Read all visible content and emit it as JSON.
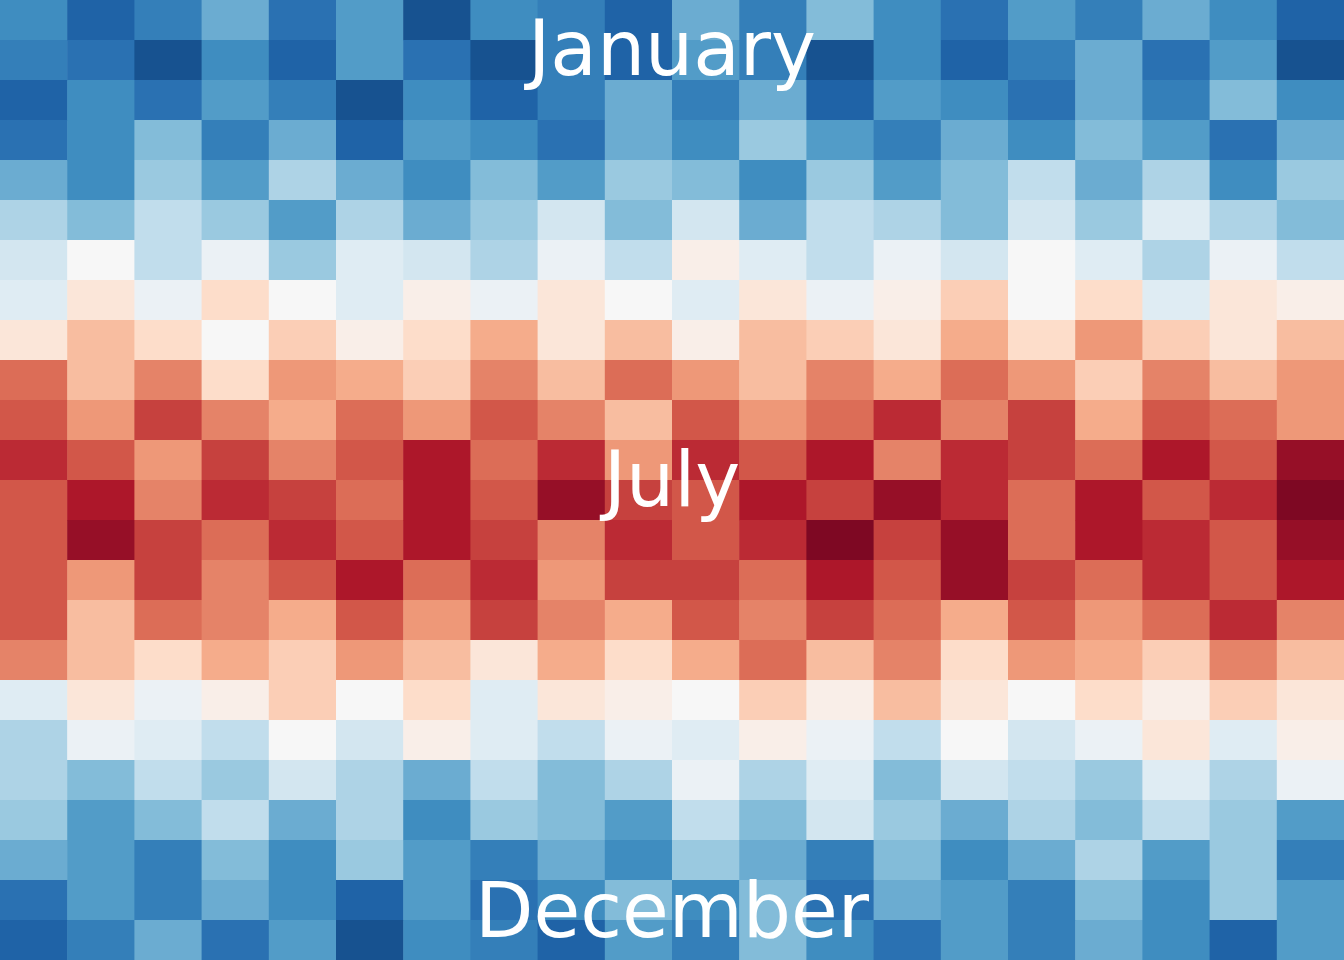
{
  "chart_data": {
    "type": "heatmap",
    "annotations": [
      "January",
      "July",
      "December"
    ],
    "tick_labels": false,
    "color_range": [
      -5,
      27
    ],
    "cells": [
      [
        1,
        -2,
        0,
        3,
        -1,
        2,
        -3,
        1,
        0,
        -2,
        3,
        0,
        4,
        1,
        -1,
        2,
        0,
        3,
        1,
        -2
      ],
      [
        0,
        -1,
        -3,
        1,
        -2,
        2,
        -1,
        -3,
        0,
        -2,
        2,
        0,
        -3,
        1,
        -2,
        0,
        3,
        -1,
        2,
        -3
      ],
      [
        -2,
        1,
        -1,
        2,
        0,
        -3,
        1,
        -2,
        0,
        3,
        0,
        3,
        -2,
        2,
        1,
        -1,
        3,
        0,
        4,
        1
      ],
      [
        -1,
        1,
        4,
        0,
        3,
        -2,
        2,
        1,
        -1,
        3,
        1,
        5,
        2,
        0,
        3,
        1,
        4,
        2,
        -1,
        3
      ],
      [
        3,
        1,
        5,
        2,
        6,
        3,
        1,
        4,
        2,
        5,
        4,
        1,
        5,
        2,
        4,
        7,
        3,
        6,
        1,
        5
      ],
      [
        6,
        4,
        7,
        5,
        2,
        6,
        3,
        5,
        8,
        4,
        8,
        3,
        7,
        6,
        4,
        8,
        5,
        9,
        6,
        4
      ],
      [
        8,
        11,
        7,
        10,
        5,
        9,
        8,
        6,
        10,
        7,
        12,
        9,
        7,
        10,
        8,
        11,
        9,
        6,
        10,
        7
      ],
      [
        9,
        13,
        10,
        14,
        11,
        9,
        12,
        10,
        13,
        11,
        9,
        13,
        10,
        12,
        15,
        11,
        14,
        9,
        13,
        12
      ],
      [
        13,
        16,
        14,
        11,
        15,
        12,
        14,
        17,
        13,
        16,
        12,
        16,
        15,
        13,
        17,
        14,
        18,
        15,
        13,
        16
      ],
      [
        20,
        16,
        19,
        14,
        18,
        17,
        15,
        19,
        16,
        20,
        18,
        16,
        19,
        17,
        20,
        18,
        15,
        19,
        16,
        18
      ],
      [
        21,
        18,
        22,
        19,
        17,
        20,
        18,
        21,
        19,
        16,
        21,
        18,
        20,
        23,
        19,
        22,
        17,
        21,
        20,
        18
      ],
      [
        23,
        21,
        18,
        22,
        19,
        21,
        24,
        20,
        23,
        18,
        23,
        21,
        24,
        19,
        23,
        22,
        20,
        24,
        21,
        25
      ],
      [
        21,
        24,
        19,
        23,
        22,
        20,
        24,
        21,
        25,
        22,
        21,
        24,
        22,
        25,
        23,
        20,
        24,
        21,
        23,
        26
      ],
      [
        21,
        25,
        22,
        20,
        23,
        21,
        24,
        22,
        19,
        23,
        21,
        23,
        26,
        22,
        25,
        20,
        24,
        23,
        21,
        25
      ],
      [
        21,
        18,
        22,
        19,
        21,
        24,
        20,
        23,
        18,
        22,
        22,
        20,
        24,
        21,
        25,
        22,
        20,
        23,
        21,
        24
      ],
      [
        21,
        16,
        20,
        19,
        17,
        21,
        18,
        22,
        19,
        17,
        21,
        19,
        22,
        20,
        17,
        21,
        18,
        20,
        23,
        19
      ],
      [
        19,
        16,
        14,
        17,
        15,
        18,
        16,
        13,
        17,
        14,
        17,
        20,
        16,
        19,
        14,
        18,
        17,
        15,
        19,
        16
      ],
      [
        9,
        13,
        10,
        12,
        15,
        11,
        14,
        9,
        13,
        12,
        11,
        15,
        12,
        16,
        13,
        11,
        14,
        12,
        15,
        13
      ],
      [
        6,
        10,
        9,
        7,
        11,
        8,
        12,
        9,
        7,
        10,
        9,
        12,
        10,
        7,
        11,
        8,
        10,
        13,
        9,
        12
      ],
      [
        6,
        4,
        7,
        5,
        8,
        6,
        3,
        7,
        4,
        6,
        10,
        6,
        9,
        4,
        8,
        7,
        5,
        9,
        6,
        10
      ],
      [
        5,
        2,
        4,
        7,
        3,
        6,
        1,
        5,
        4,
        2,
        7,
        4,
        8,
        5,
        3,
        6,
        4,
        7,
        5,
        2
      ],
      [
        3,
        2,
        0,
        4,
        1,
        5,
        2,
        0,
        3,
        1,
        5,
        3,
        0,
        4,
        1,
        3,
        6,
        2,
        5,
        0
      ],
      [
        -1,
        2,
        0,
        3,
        1,
        -2,
        2,
        -1,
        1,
        4,
        1,
        4,
        -1,
        3,
        2,
        0,
        4,
        1,
        5,
        2
      ],
      [
        -2,
        0,
        3,
        -1,
        2,
        -3,
        1,
        0,
        -2,
        2,
        0,
        4,
        1,
        -1,
        2,
        0,
        3,
        1,
        -2,
        2
      ]
    ]
  }
}
